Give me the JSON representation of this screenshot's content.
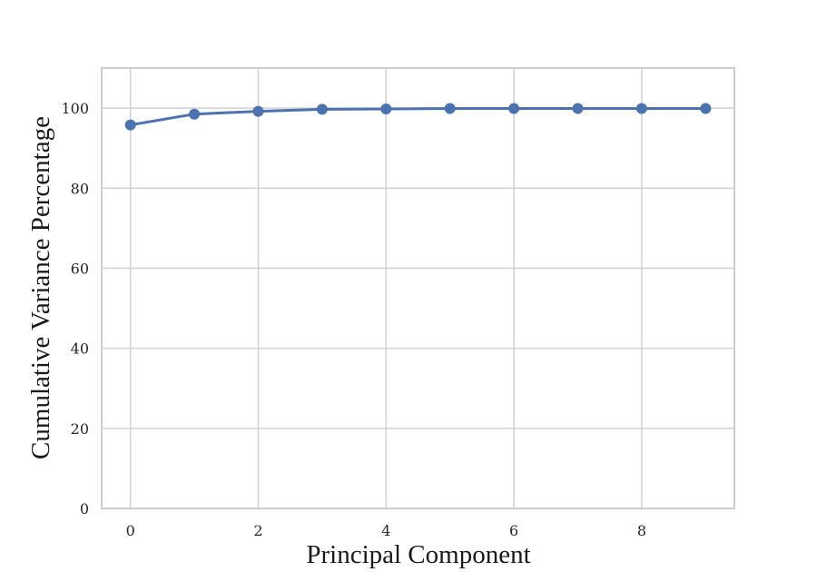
{
  "chart_data": {
    "type": "line",
    "title": "",
    "xlabel": "Principal Component",
    "ylabel": "Cumulative Variance Percentage",
    "x": [
      0,
      1,
      2,
      3,
      4,
      5,
      6,
      7,
      8,
      9
    ],
    "series": [
      {
        "values": [
          95.8,
          98.5,
          99.2,
          99.7,
          99.8,
          99.9,
          99.9,
          99.9,
          99.9,
          99.9
        ],
        "color": "#4c72b0",
        "marker": "circle"
      }
    ],
    "xlim": [
      -0.45,
      9.45
    ],
    "ylim": [
      0,
      110
    ],
    "xticks": [
      0,
      2,
      4,
      6,
      8
    ],
    "xtick_labels": [
      "0",
      "2",
      "4",
      "6",
      "8"
    ],
    "yticks": [
      0,
      20,
      40,
      60,
      80,
      100
    ],
    "ytick_labels": [
      "0",
      "20",
      "40",
      "60",
      "80",
      "100"
    ],
    "grid": true,
    "legend": "none",
    "colors": {
      "grid": "#d3d3d3",
      "frame": "#cccccc",
      "line": "#4c72b0"
    }
  }
}
